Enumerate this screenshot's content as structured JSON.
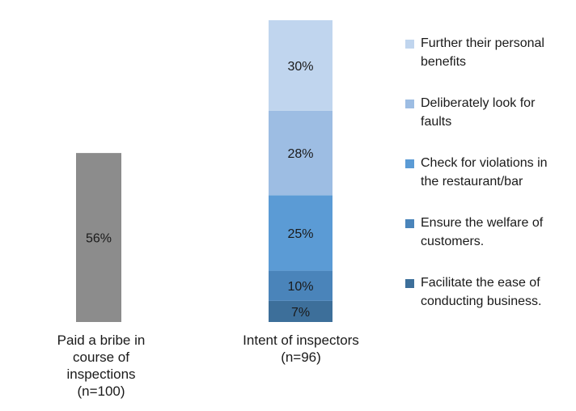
{
  "chart_data": {
    "type": "bar",
    "stacked": true,
    "categories": [
      "Paid a bribe in course of inspections (n=100)",
      "Intent of inspectors (n=96)"
    ],
    "category_lines": [
      [
        "Paid a bribe in",
        "course of",
        "inspections",
        "(n=100)"
      ],
      [
        "Intent of inspectors",
        "(n=96)"
      ]
    ],
    "bars": [
      {
        "category": "Paid a bribe in course of inspections (n=100)",
        "segments": [
          {
            "value": 56,
            "label": "56%",
            "color": "#8c8c8c"
          }
        ]
      },
      {
        "category": "Intent of inspectors (n=96)",
        "segments": [
          {
            "series": "Facilitate the ease of conducting business.",
            "value": 7,
            "label": "7%",
            "color": "#3d6f9a"
          },
          {
            "series": "Ensure the welfare of customers.",
            "value": 10,
            "label": "10%",
            "color": "#4a84ba"
          },
          {
            "series": "Check for violations in the restaurant/bar",
            "value": 25,
            "label": "25%",
            "color": "#5b9bd5"
          },
          {
            "series": "Deliberately look for faults",
            "value": 28,
            "label": "28%",
            "color": "#9dbde3"
          },
          {
            "series": "Further their personal benefits",
            "value": 30,
            "label": "30%",
            "color": "#c0d5ee"
          }
        ]
      }
    ],
    "ylim": [
      0,
      100
    ],
    "grid": false,
    "axes_visible": false,
    "legend_position": "right"
  },
  "legend": {
    "items": [
      {
        "lines": [
          "Further their personal",
          "benefits"
        ],
        "color": "#c0d5ee"
      },
      {
        "lines": [
          "Deliberately look for",
          "faults"
        ],
        "color": "#9dbde3"
      },
      {
        "lines": [
          "Check for violations in",
          "the restaurant/bar"
        ],
        "color": "#5b9bd5"
      },
      {
        "lines": [
          "Ensure the welfare of",
          "customers."
        ],
        "color": "#4a84ba"
      },
      {
        "lines": [
          "Facilitate the ease of",
          "conducting business."
        ],
        "color": "#3d6f9a"
      }
    ]
  }
}
